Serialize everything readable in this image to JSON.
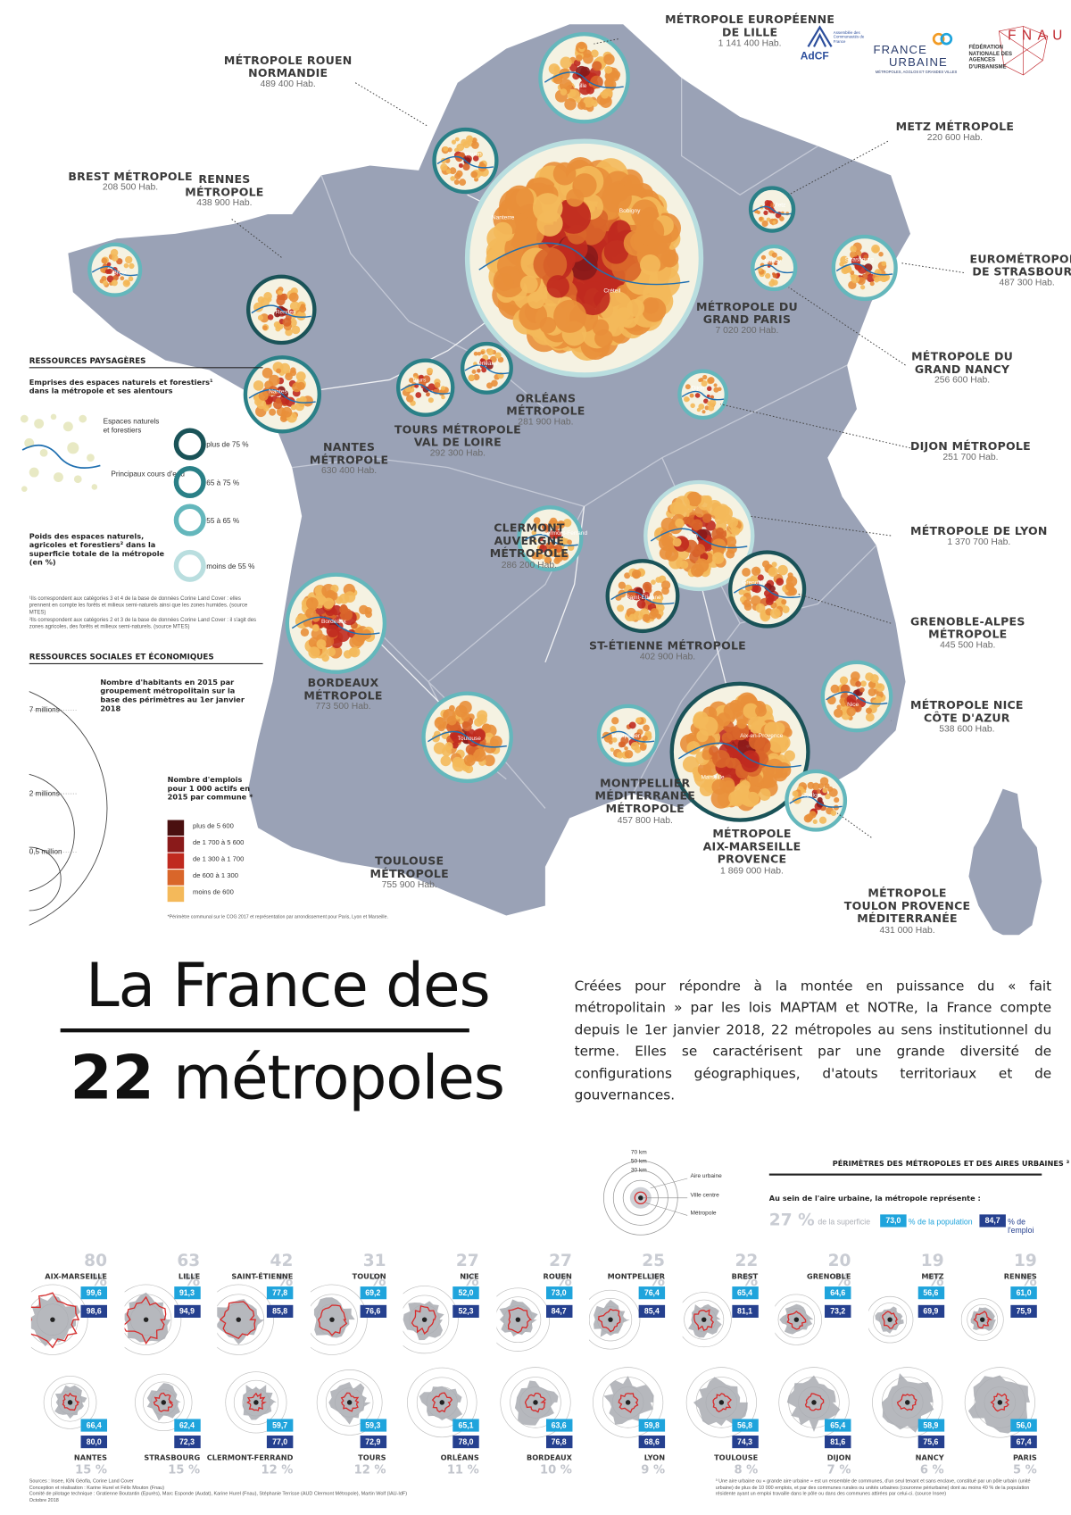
{
  "title": {
    "line1": "La France des",
    "line2_num": "22",
    "line2_word": "métropoles"
  },
  "intro": "Créées pour répondre à la montée en puissance du « fait métropolitain » par les lois MAPTAM et NOTRe, la France compte depuis le 1er janvier 2018, 22 métropoles au sens institutionnel du terme. Elles se caractérisent par une grande diversité de configurations géographiques, d'atouts territoriaux et de gouvernances.",
  "logos": {
    "adcf": "AdCF",
    "adcf_sub": "Assemblée des Communautés de France",
    "fu_line1": "FRANCE",
    "fu_line2": "URBAINE",
    "fu_sub": "MÉTROPOLES, AGGLOS ET GRANDES VILLES",
    "fnau": "FÉDÉRATION NATIONALE DES AGENCES D'URBANISME",
    "fnau_mark": "FNAU"
  },
  "metros": [
    {
      "name": "MÉTROPOLE EUROPÉENNE\nDE LILLE",
      "pop": "1 141 400 Hab."
    },
    {
      "name": "MÉTROPOLE ROUEN\nNORMANDIE",
      "pop": "489 400 Hab."
    },
    {
      "name": "METZ MÉTROPOLE",
      "pop": "220 600 Hab."
    },
    {
      "name": "BREST MÉTROPOLE",
      "pop": "208 500 Hab."
    },
    {
      "name": "RENNES\nMÉTROPOLE",
      "pop": "438 900 Hab."
    },
    {
      "name": "EUROMÉTROPOLE\nDE STRASBOURG",
      "pop": "487 300 Hab."
    },
    {
      "name": "MÉTROPOLE DU\nGRAND PARIS",
      "pop": "7 020 200 Hab."
    },
    {
      "name": "MÉTROPOLE DU\nGRAND NANCY",
      "pop": "256 600 Hab."
    },
    {
      "name": "ORLÉANS\nMÉTROPOLE",
      "pop": "281 900 Hab."
    },
    {
      "name": "TOURS MÉTROPOLE\nVAL DE LOIRE",
      "pop": "292 300 Hab."
    },
    {
      "name": "NANTES\nMÉTROPOLE",
      "pop": "630 400 Hab."
    },
    {
      "name": "DIJON MÉTROPOLE",
      "pop": "251 700 Hab."
    },
    {
      "name": "CLERMONT\nAUVERGNE\nMÉTROPOLE",
      "pop": "286 200 Hab."
    },
    {
      "name": "MÉTROPOLE DE LYON",
      "pop": "1 370 700 Hab."
    },
    {
      "name": "ST-ÉTIENNE MÉTROPOLE",
      "pop": "402 900 Hab."
    },
    {
      "name": "GRENOBLE-ALPES\nMÉTROPOLE",
      "pop": "445 500 Hab."
    },
    {
      "name": "BORDEAUX\nMÉTROPOLE",
      "pop": "773 500 Hab."
    },
    {
      "name": "MÉTROPOLE NICE\nCÔTE D'AZUR",
      "pop": "538 600 Hab."
    },
    {
      "name": "MONTPELLIER\nMÉDITERRANÉE\nMÉTROPOLE",
      "pop": "457 800 Hab."
    },
    {
      "name": "MÉTROPOLE\nAIX-MARSEILLE\nPROVENCE",
      "pop": "1 869 000 Hab."
    },
    {
      "name": "TOULOUSE\nMÉTROPOLE",
      "pop": "755 900 Hab."
    },
    {
      "name": "MÉTROPOLE\nTOULON PROVENCE\nMÉDITERRANÉE",
      "pop": "431 000 Hab."
    }
  ],
  "map_place_labels": [
    "Lille",
    "Rouen",
    "Metz",
    "Brest",
    "Rennes",
    "Strasbourg",
    "Nanterre",
    "Bobigny",
    "Créteil",
    "Nancy",
    "Orléans",
    "Tours",
    "Nantes",
    "Dijon",
    "Clermont-Ferrand",
    "Lyon",
    "Saint-Étienne",
    "Grenoble",
    "Bordeaux",
    "Nice",
    "Montpellier",
    "Aix-en-Provence",
    "Marseille",
    "Toulouse",
    "Toulon"
  ],
  "legend1": {
    "title": "RESSOURCES PAYSAGÈRES",
    "sub": "Emprises des espaces naturels et forestiers¹ dans la métropole et ses alentours",
    "swatch1": "Espaces naturels et forestiers",
    "swatch2": "Principaux cours d'eau",
    "poids_title": "Poids des espaces naturels, agricoles et forestiers² dans la superficie totale de la métropole (en %)",
    "rings": [
      "plus de 75 %",
      "65 à 75 %",
      "55 à 65 %",
      "moins de 55 %"
    ],
    "ring_colors": [
      "#1a5358",
      "#2a8087",
      "#64b7bc",
      "#b9dedf"
    ],
    "note1": "¹Ils correspondent aux catégories 3 et 4 de la base de données Corine Land Cover : elles prennent en compte les forêts et milieux semi-naturels ainsi que les zones humides. (source MTES)",
    "note2": "²Ils correspondent aux catégories 2 et 3 de la base de données Corine Land Cover : il s'agit des zones agricoles, des forêts et milieux semi-naturels. (source MTES)"
  },
  "legend2": {
    "title": "RESSOURCES SOCIALES ET ÉCONOMIQUES",
    "sub": "Nombre d'habitants en 2015 par groupement métropolitain sur la base des périmètres au 1er janvier 2018",
    "circles": [
      "7 millions",
      "2 millions",
      "0,5 million"
    ],
    "emp_title": "Nombre d'emplois pour 1 000 actifs en 2015 par commune *",
    "classes": [
      "plus de 5 600",
      "de 1 700 à 5 600",
      "de 1 300 à 1 700",
      "de 600 à 1 300",
      "moins de 600"
    ],
    "class_colors": [
      "#4a1010",
      "#8a1a1a",
      "#c02a1f",
      "#d9662a",
      "#f4b95a"
    ],
    "footnote": "*Périmètre communal sur le COG 2017 et représentation par arrondissement pour Paris, Lyon et Marseille."
  },
  "perimetres": {
    "title": "PÉRIMÈTRES DES MÉTROPOLES ET DES AIRES URBAINES ³",
    "sub": "Au sein de l'aire urbaine, la métropole représente :",
    "diag_labels": [
      "70 km",
      "50 km",
      "30 km",
      "Aire urbaine",
      "Ville centre",
      "Métropole"
    ],
    "key_pct": "27 %",
    "key_sup": "de la superficie",
    "key_pop_val": "73,0",
    "key_pop": "% de la population",
    "key_emp_val": "84,7",
    "key_emp": "% de l'emploi",
    "row1": [
      {
        "name": "AIX-MARSEILLE",
        "pct": "80 %",
        "pop": "99,6",
        "emp": "98,6"
      },
      {
        "name": "LILLE",
        "pct": "63 %",
        "pop": "91,3",
        "emp": "94,9"
      },
      {
        "name": "SAINT-ÉTIENNE",
        "pct": "42 %",
        "pop": "77,8",
        "emp": "85,8"
      },
      {
        "name": "TOULON",
        "pct": "31 %",
        "pop": "69,2",
        "emp": "76,6"
      },
      {
        "name": "NICE",
        "pct": "27 %",
        "pop": "52,0",
        "emp": "52,3"
      },
      {
        "name": "ROUEN",
        "pct": "27 %",
        "pop": "73,0",
        "emp": "84,7"
      },
      {
        "name": "MONTPELLIER",
        "pct": "25 %",
        "pop": "76,4",
        "emp": "85,4"
      },
      {
        "name": "BREST",
        "pct": "22 %",
        "pop": "65,4",
        "emp": "81,1"
      },
      {
        "name": "GRENOBLE",
        "pct": "20 %",
        "pop": "64,6",
        "emp": "73,2"
      },
      {
        "name": "METZ",
        "pct": "19 %",
        "pop": "56,6",
        "emp": "69,9"
      },
      {
        "name": "RENNES",
        "pct": "19 %",
        "pop": "61,0",
        "emp": "75,9"
      }
    ],
    "row2": [
      {
        "name": "NANTES",
        "pct": "15 %",
        "pop": "66,4",
        "emp": "80,0"
      },
      {
        "name": "STRASBOURG",
        "pct": "15 %",
        "pop": "62,4",
        "emp": "72,3"
      },
      {
        "name": "CLERMONT-FERRAND",
        "pct": "12 %",
        "pop": "59,7",
        "emp": "77,0"
      },
      {
        "name": "TOURS",
        "pct": "12 %",
        "pop": "59,3",
        "emp": "72,9"
      },
      {
        "name": "ORLÉANS",
        "pct": "11 %",
        "pop": "65,1",
        "emp": "78,0"
      },
      {
        "name": "BORDEAUX",
        "pct": "10 %",
        "pop": "63,6",
        "emp": "76,8"
      },
      {
        "name": "LYON",
        "pct": "9 %",
        "pop": "59,8",
        "emp": "68,6"
      },
      {
        "name": "TOULOUSE",
        "pct": "8 %",
        "pop": "56,8",
        "emp": "74,3"
      },
      {
        "name": "DIJON",
        "pct": "7 %",
        "pop": "65,4",
        "emp": "81,6"
      },
      {
        "name": "NANCY",
        "pct": "6 %",
        "pop": "58,9",
        "emp": "75,6"
      },
      {
        "name": "PARIS",
        "pct": "5 %",
        "pop": "56,0",
        "emp": "67,4"
      }
    ]
  },
  "sources": "Sources : Insee, IGN Géofla, Corine Land Cover\nConception et réalisation : Karine Hurel et Félix Mouton (Fnau)\nComité de pilotage technique : Gratienne Boutantin (Epurès), Marc Esponde (Audat), Karine Hurel (Fnau), Stéphanie Terrisse (AUD Clermont Métropole), Martin Wolf (IAU-IdF)\nOctobre 2018",
  "footnote3": "³ Une aire urbaine ou « grande aire urbaine » est un ensemble de communes, d'un seul tenant et sans enclave, constitué par un pôle urbain (unité urbaine) de plus de 10 000 emplois, et par des communes rurales ou unités urbaines (couronne périurbaine) dont au moins 40 % de la population résidente ayant un emploi travaille dans le pôle ou dans des communes attirées par celui-ci. (source Insee)",
  "colors": {
    "land": "#9aa2b6",
    "sea": "#ffffff",
    "accent_blue": "#1fa4dc",
    "dark_blue": "#25408f"
  }
}
